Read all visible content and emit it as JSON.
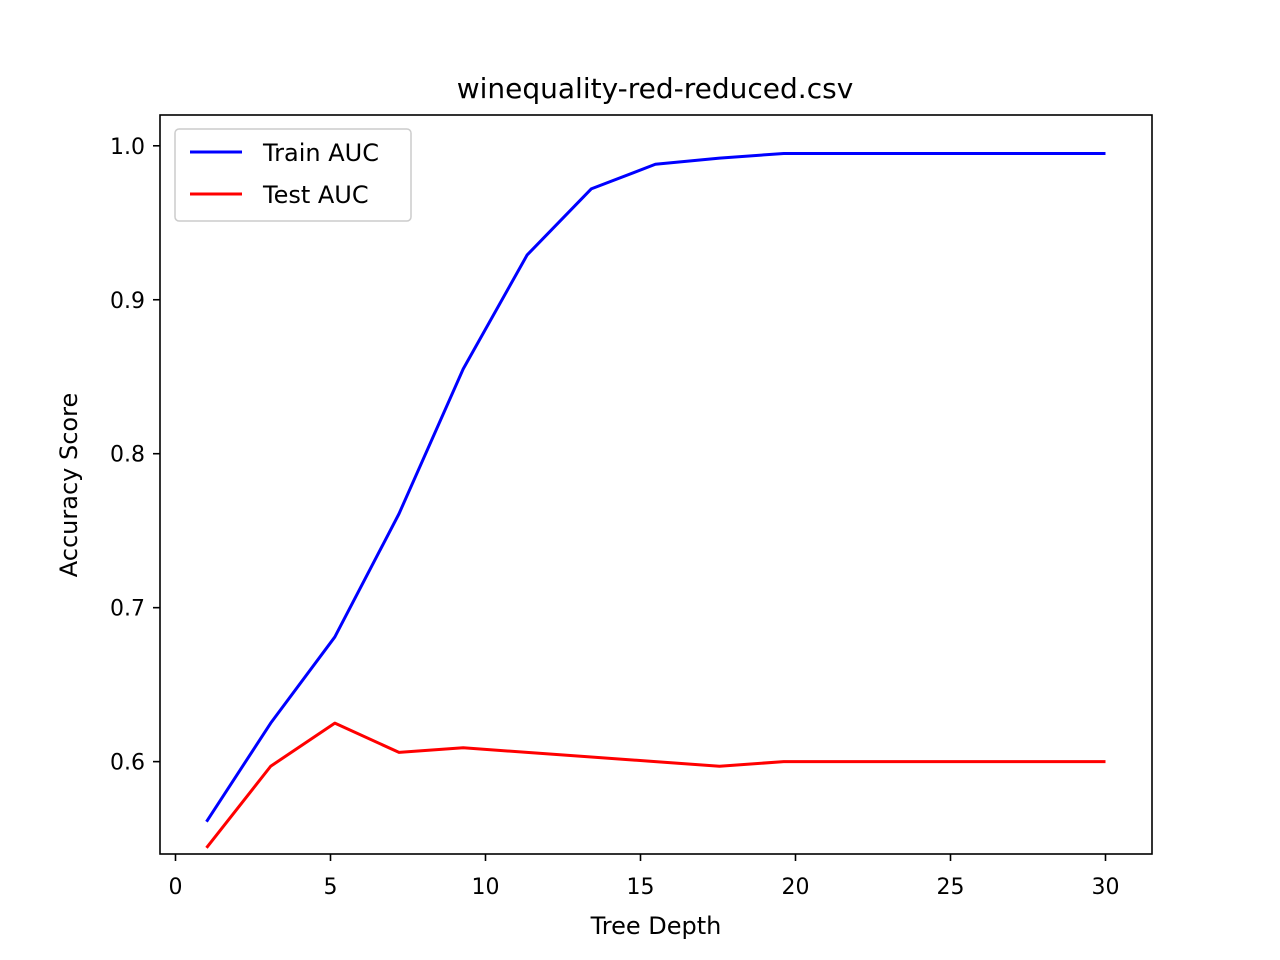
{
  "chart_data": {
    "type": "line",
    "title": "winequality-red-reduced.csv",
    "xlabel": "Tree Depth",
    "ylabel": "Accuracy Score",
    "xlim": [
      -0.5,
      31.5
    ],
    "ylim": [
      0.54,
      1.02
    ],
    "xticks": [
      0,
      5,
      10,
      15,
      20,
      25,
      30
    ],
    "xtick_labels": [
      "0",
      "5",
      "10",
      "15",
      "20",
      "25",
      "30"
    ],
    "yticks": [
      0.6,
      0.7,
      0.8,
      0.9,
      1.0
    ],
    "ytick_labels": [
      "0.6",
      "0.7",
      "0.8",
      "0.9",
      "1.0"
    ],
    "grid": false,
    "legend_position": "top-left",
    "x": [
      1,
      3.07,
      5.14,
      7.21,
      9.28,
      11.34,
      13.41,
      15.48,
      17.55,
      19.62,
      21.69,
      23.76,
      25.83,
      27.9,
      30
    ],
    "series": [
      {
        "name": "Train AUC",
        "color": "#0000ff",
        "values": [
          0.561,
          0.625,
          0.681,
          0.761,
          0.855,
          0.929,
          0.972,
          0.988,
          0.992,
          0.995,
          0.995,
          0.995,
          0.995,
          0.995,
          0.995
        ]
      },
      {
        "name": "Test AUC",
        "color": "#ff0000",
        "values": [
          0.544,
          0.597,
          0.625,
          0.606,
          0.609,
          0.606,
          0.603,
          0.6,
          0.597,
          0.6,
          0.6,
          0.6,
          0.6,
          0.6,
          0.6
        ]
      }
    ]
  }
}
